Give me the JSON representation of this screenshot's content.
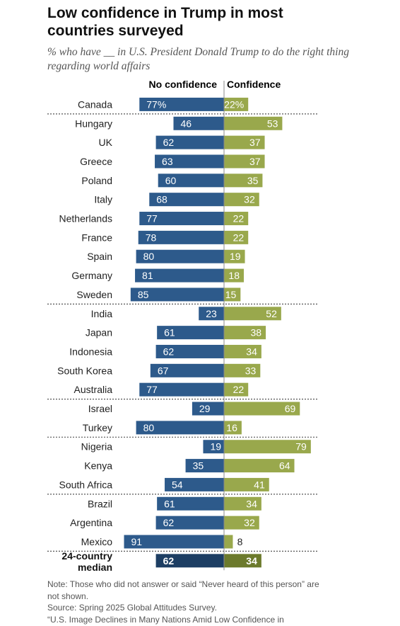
{
  "title": "Low confidence in Trump in most countries surveyed",
  "subtitle": "% who have __ in U.S. President Donald Trump to do the right thing regarding world affairs",
  "legend": {
    "no_confidence": "No confidence",
    "confidence": "Confidence"
  },
  "colors": {
    "no_confidence": "#2d5a8b",
    "confidence": "#99a84c",
    "median_no_confidence": "#1d3e63",
    "median_confidence": "#6c7a2c"
  },
  "chart_data": {
    "type": "bar",
    "orientation": "horizontal-diverging",
    "categories": [
      "Canada",
      "Hungary",
      "UK",
      "Greece",
      "Poland",
      "Italy",
      "Netherlands",
      "France",
      "Spain",
      "Germany",
      "Sweden",
      "India",
      "Japan",
      "Indonesia",
      "South Korea",
      "Australia",
      "Israel",
      "Turkey",
      "Nigeria",
      "Kenya",
      "South Africa",
      "Brazil",
      "Argentina",
      "Mexico",
      "24-country median"
    ],
    "value_labels": {
      "no_confidence": [
        "77%",
        "46",
        "62",
        "63",
        "60",
        "68",
        "77",
        "78",
        "80",
        "81",
        "85",
        "23",
        "61",
        "62",
        "67",
        "77",
        "29",
        "80",
        "19",
        "35",
        "54",
        "61",
        "62",
        "91",
        "62"
      ],
      "confidence": [
        "22%",
        "53",
        "37",
        "37",
        "35",
        "32",
        "22",
        "22",
        "19",
        "18",
        "15",
        "52",
        "38",
        "34",
        "33",
        "22",
        "69",
        "16",
        "79",
        "64",
        "41",
        "34",
        "32",
        "8",
        "34"
      ]
    },
    "series": [
      {
        "name": "No confidence",
        "values": [
          77,
          46,
          62,
          63,
          60,
          68,
          77,
          78,
          80,
          81,
          85,
          23,
          61,
          62,
          67,
          77,
          29,
          80,
          19,
          35,
          54,
          61,
          62,
          91,
          62
        ]
      },
      {
        "name": "Confidence",
        "values": [
          22,
          53,
          37,
          37,
          35,
          32,
          22,
          22,
          19,
          18,
          15,
          52,
          38,
          34,
          33,
          22,
          69,
          16,
          79,
          64,
          41,
          34,
          32,
          8,
          34
        ]
      }
    ],
    "unit": "%",
    "group_separators_after": [
      "Canada",
      "Sweden",
      "Australia",
      "Turkey",
      "South Africa",
      "Mexico"
    ],
    "median_label_lines": [
      "24-country",
      "median"
    ]
  },
  "notes": {
    "note": "Note: Those who did not answer or said “Never heard of this person” are not shown.",
    "source": "Source: Spring 2025 Global Attitudes Survey.",
    "report": "“U.S. Image Declines in Many Nations Amid Low Confidence in"
  }
}
